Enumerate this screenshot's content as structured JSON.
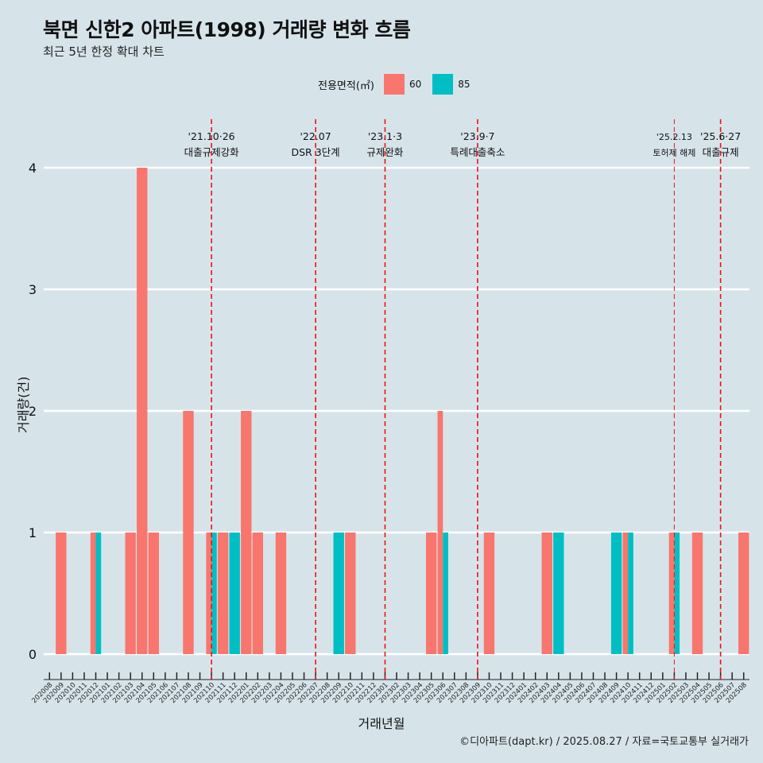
{
  "header": {
    "title": "북면 신한2 아파트(1998) 거래량 변화 흐름",
    "subtitle": "최근 5년 한정 확대 차트"
  },
  "caption": "©디아파트(dapt.kr) / 2025.08.27 / 자료=국토교통부 실거래가",
  "legend": {
    "title": "전용면적(㎡)",
    "items": [
      {
        "label": "60",
        "color": "#f8766d"
      },
      {
        "label": "85",
        "color": "#00bfc4"
      }
    ]
  },
  "chart_data": {
    "type": "bar",
    "title": "북면 신한2 아파트(1998) 거래량 변화 흐름",
    "subtitle": "최근 5년 한정 확대 차트",
    "xlabel": "거래년월",
    "ylabel": "거래량(건)",
    "ylim": [
      0,
      4
    ],
    "yticks": [
      0,
      1,
      2,
      3,
      4
    ],
    "grid": "horizontal",
    "legend_position": "top",
    "categories": [
      "202008",
      "202009",
      "202010",
      "202011",
      "202012",
      "202101",
      "202102",
      "202103",
      "202104",
      "202105",
      "202106",
      "202107",
      "202108",
      "202109",
      "202110",
      "202111",
      "202112",
      "202201",
      "202202",
      "202203",
      "202204",
      "202205",
      "202206",
      "202207",
      "202208",
      "202209",
      "202210",
      "202211",
      "202212",
      "202301",
      "202302",
      "202303",
      "202304",
      "202305",
      "202306",
      "202307",
      "202308",
      "202309",
      "202310",
      "202311",
      "202312",
      "202401",
      "202402",
      "202403",
      "202404",
      "202405",
      "202406",
      "202407",
      "202408",
      "202409",
      "202410",
      "202411",
      "202412",
      "202501",
      "202502",
      "202503",
      "202504",
      "202505",
      "202506",
      "202507",
      "202508"
    ],
    "series": [
      {
        "name": "60",
        "color": "#f8766d",
        "values": [
          0,
          1,
          0,
          0,
          1,
          0,
          0,
          1,
          4,
          1,
          0,
          0,
          2,
          0,
          1,
          1,
          0,
          2,
          1,
          0,
          1,
          0,
          0,
          0,
          0,
          0,
          1,
          0,
          0,
          0,
          0,
          0,
          0,
          1,
          2,
          0,
          0,
          0,
          1,
          0,
          0,
          0,
          0,
          1,
          0,
          0,
          0,
          0,
          0,
          0,
          1,
          0,
          0,
          0,
          1,
          0,
          1,
          0,
          0,
          0,
          1
        ]
      },
      {
        "name": "85",
        "color": "#00bfc4",
        "values": [
          0,
          0,
          0,
          0,
          1,
          0,
          0,
          0,
          0,
          0,
          0,
          0,
          0,
          0,
          1,
          0,
          1,
          0,
          0,
          0,
          0,
          0,
          0,
          0,
          0,
          1,
          0,
          0,
          0,
          0,
          0,
          0,
          0,
          0,
          1,
          0,
          0,
          0,
          0,
          0,
          0,
          0,
          0,
          0,
          1,
          0,
          0,
          0,
          0,
          1,
          1,
          0,
          0,
          0,
          1,
          0,
          0,
          0,
          0,
          0,
          0
        ]
      }
    ],
    "annotations": [
      {
        "at": "202110",
        "date": "'21.10·26",
        "label": "대출규제강화"
      },
      {
        "at": "202207",
        "date": "'22.07",
        "label": "DSR 3단계"
      },
      {
        "at": "202301",
        "date": "'23.1·3",
        "label": "규제완화"
      },
      {
        "at": "202309",
        "date": "'23.9·7",
        "label": "특례대출축소"
      },
      {
        "at": "202502",
        "date": "'25.2.13",
        "label": "토허제 해제"
      },
      {
        "at": "202506",
        "date": "'25.6·27",
        "label": "대출규제"
      }
    ]
  }
}
